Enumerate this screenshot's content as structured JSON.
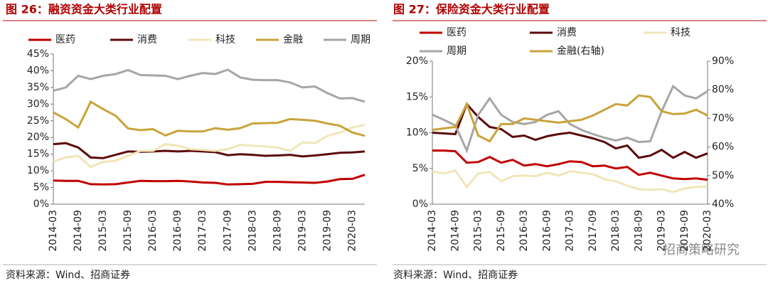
{
  "chart_data": [
    {
      "type": "line",
      "title": "图 26：融资资金大类行业配置",
      "categories": [
        "2014-03",
        null,
        "2014-09",
        null,
        "2015-03",
        null,
        "2015-09",
        null,
        "2016-03",
        null,
        "2016-09",
        null,
        "2017-03",
        null,
        "2017-09",
        null,
        "2018-03",
        null,
        "2018-09",
        null,
        "2019-03",
        null,
        "2019-09",
        null,
        "2020-03",
        null
      ],
      "ylim": [
        0,
        45
      ],
      "yticks": [
        {
          "value": 0,
          "label": "0%"
        },
        {
          "value": 5,
          "label": "5%"
        },
        {
          "value": 10,
          "label": "10%"
        },
        {
          "value": 15,
          "label": "15%"
        },
        {
          "value": 20,
          "label": "20%"
        },
        {
          "value": 25,
          "label": "25%"
        },
        {
          "value": 30,
          "label": "30%"
        },
        {
          "value": 35,
          "label": "35%"
        },
        {
          "value": 40,
          "label": "40%"
        },
        {
          "value": 45,
          "label": "45%"
        }
      ],
      "series": [
        {
          "name": "医药",
          "color": "#c00000",
          "values": [
            7.1,
            7.0,
            7.0,
            6.0,
            5.9,
            6.0,
            6.5,
            7.0,
            6.9,
            6.9,
            7.0,
            6.8,
            6.5,
            6.4,
            5.9,
            6.0,
            6.1,
            6.7,
            6.7,
            6.6,
            6.5,
            6.4,
            6.8,
            7.5,
            7.6,
            8.8
          ]
        },
        {
          "name": "消费",
          "color": "#5c0a0a",
          "values": [
            18,
            18.3,
            17,
            14,
            13.8,
            14.8,
            15.8,
            15.7,
            15.8,
            16,
            15.8,
            16,
            15.8,
            15.6,
            14.7,
            15,
            14.8,
            14.5,
            14.6,
            14.8,
            14.3,
            14.6,
            15,
            15.4,
            15.5,
            15.8
          ]
        },
        {
          "name": "科技",
          "color": "#f0e6b8",
          "values": [
            12.8,
            14,
            14.5,
            11.2,
            12.7,
            13,
            14.5,
            16,
            16,
            18,
            17.5,
            16.5,
            16.3,
            16,
            16.5,
            17.8,
            17.5,
            17.3,
            17,
            16,
            18.5,
            18.3,
            20.5,
            21.5,
            23,
            23.8
          ]
        },
        {
          "name": "金融",
          "color": "#c9a33a",
          "values": [
            27.5,
            25.5,
            23,
            30.7,
            28.5,
            26.5,
            22.7,
            22.2,
            22.5,
            20.6,
            22,
            21.8,
            21.8,
            22.8,
            22.3,
            22.8,
            24.2,
            24.3,
            24.4,
            25.5,
            25.3,
            25,
            24.2,
            23.5,
            21.5,
            20.5
          ]
        },
        {
          "name": "周期",
          "color": "#a6a6a6",
          "values": [
            34,
            35,
            38.5,
            37.5,
            38.5,
            39,
            40.2,
            38.7,
            38.6,
            38.5,
            37.5,
            38.5,
            39.3,
            39,
            40.3,
            38,
            37.3,
            37.2,
            37.2,
            36.5,
            35,
            35.3,
            33.3,
            31.7,
            31.8,
            30.7
          ]
        }
      ],
      "source": "资料来源：Wind、招商证券"
    },
    {
      "type": "line",
      "title": "图 27：保险资金大类行业配置",
      "categories": [
        "2014-03",
        null,
        "2014-09",
        null,
        "2015-03",
        null,
        "2015-09",
        null,
        "2016-03",
        null,
        "2016-09",
        null,
        "2017-03",
        null,
        "2017-09",
        null,
        "2018-03",
        null,
        "2018-09",
        null,
        "2019-03",
        null,
        "2019-09",
        null,
        "2020-03"
      ],
      "ylim": [
        0,
        20
      ],
      "yticks": [
        {
          "value": 0,
          "label": "0%"
        },
        {
          "value": 5,
          "label": "5%"
        },
        {
          "value": 10,
          "label": "10%"
        },
        {
          "value": 15,
          "label": "15%"
        },
        {
          "value": 20,
          "label": "20%"
        }
      ],
      "y2lim": [
        40,
        90
      ],
      "y2ticks": [
        {
          "value": 40,
          "label": "40%"
        },
        {
          "value": 50,
          "label": "50%"
        },
        {
          "value": 60,
          "label": "60%"
        },
        {
          "value": 70,
          "label": "70%"
        },
        {
          "value": 80,
          "label": "80%"
        },
        {
          "value": 90,
          "label": "90%"
        }
      ],
      "series": [
        {
          "name": "医药",
          "color": "#c00000",
          "values": [
            7.5,
            7.5,
            7.4,
            5.8,
            5.9,
            6.6,
            5.8,
            6.2,
            5.4,
            5.6,
            5.3,
            5.6,
            6.0,
            5.9,
            5.3,
            5.4,
            5.0,
            5.2,
            4.1,
            4.4,
            4.0,
            3.6,
            3.5,
            3.6,
            3.4
          ]
        },
        {
          "name": "消费",
          "color": "#5c0a0a",
          "values": [
            10,
            9.9,
            9.8,
            14,
            12.2,
            10.8,
            10.5,
            9.4,
            9.6,
            9.0,
            9.5,
            9.8,
            10,
            9.6,
            9.2,
            8.7,
            7.8,
            8.2,
            6.5,
            6.8,
            7.6,
            6.5,
            7.3,
            6.5,
            7.1
          ]
        },
        {
          "name": "科技",
          "color": "#f0e6b8",
          "values": [
            4.6,
            4.3,
            4.7,
            2.4,
            4.3,
            4.5,
            3.2,
            3.9,
            4.0,
            3.9,
            4.4,
            4.0,
            4.6,
            4.4,
            4.2,
            3.5,
            3.2,
            2.6,
            2.1,
            2.0,
            2.1,
            1.7,
            2.2,
            2.4,
            2.5
          ]
        },
        {
          "name": "周期",
          "color": "#a6a6a6",
          "values": [
            12.5,
            11.8,
            11.0,
            7.5,
            12.5,
            14.8,
            12.5,
            11.5,
            11.2,
            11.5,
            12.5,
            13,
            11.2,
            10.4,
            9.8,
            9.3,
            8.9,
            9.3,
            8.7,
            8.8,
            13,
            16.5,
            15.2,
            14.8,
            15.8
          ]
        },
        {
          "name": "金融(右轴)",
          "color": "#c9a33a",
          "axis": "y2",
          "values": [
            66,
            66.5,
            67,
            75,
            64,
            62,
            68,
            68,
            70,
            69.5,
            69,
            68.5,
            69,
            69.5,
            71,
            73,
            75,
            74.5,
            78,
            77.5,
            72.5,
            71.5,
            71.7,
            73,
            71
          ]
        }
      ],
      "source": "资料来源：Wind、招商证券"
    }
  ],
  "watermark": "招商策略研究"
}
